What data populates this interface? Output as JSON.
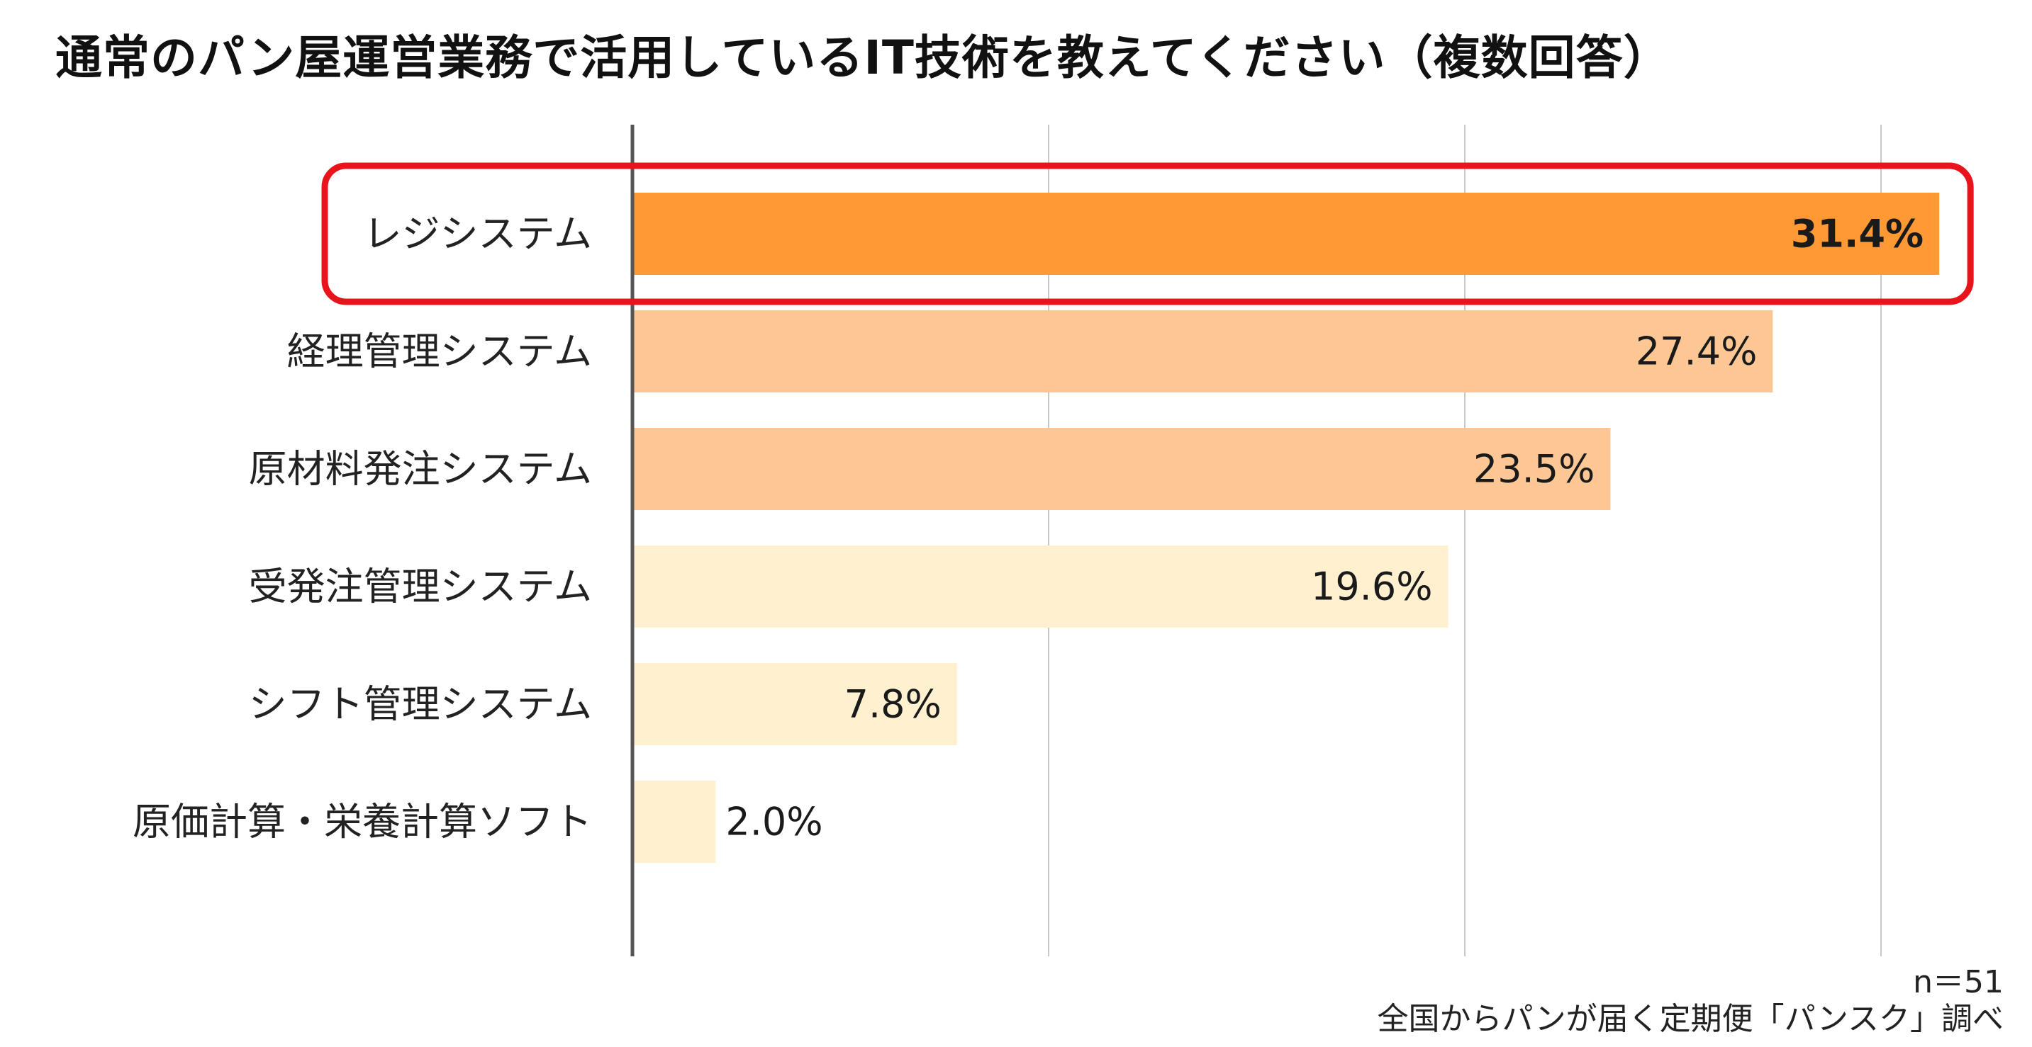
{
  "title": "通常のパン屋運営業務で活用しているIT技術を教えてください（複数回答）",
  "chart_data": {
    "type": "bar",
    "orientation": "horizontal",
    "title": "通常のパン屋運営業務で活用しているIT技術を教えてください（複数回答）",
    "categories": [
      "レジシステム",
      "経理管理システム",
      "原材料発注システム",
      "受発注管理システム",
      "シフト管理システム",
      "原価計算・栄養計算ソフト"
    ],
    "values": [
      31.4,
      27.4,
      23.5,
      19.6,
      7.8,
      2.0
    ],
    "value_labels": [
      "31.4%",
      "27.4%",
      "23.5%",
      "19.6%",
      "7.8%",
      "2.0%"
    ],
    "colors": [
      "#FF9933",
      "#FCC794",
      "#FCC794",
      "#FFF0CF",
      "#FFF0CF",
      "#FFF0CF"
    ],
    "highlight_index": 0,
    "highlight_color": "#E8141B",
    "xlim": [
      0,
      30
    ],
    "xticks": [
      0,
      10,
      20,
      30
    ],
    "grid": true,
    "xlabel": "",
    "ylabel": ""
  },
  "footer": {
    "n_label": "n＝51",
    "source": "全国からパンが届く定期便「パンスク」調べ"
  }
}
